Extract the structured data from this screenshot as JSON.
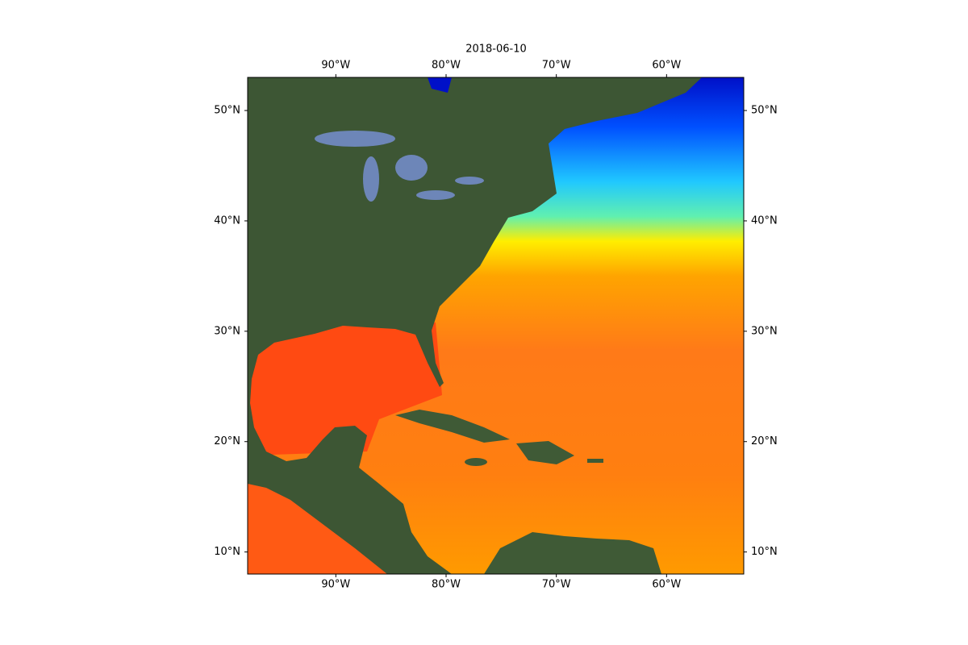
{
  "chart_data": {
    "type": "map",
    "title": "2018-06-10",
    "xlim": [
      -98,
      -53
    ],
    "ylim": [
      8,
      53
    ],
    "xticks": [
      {
        "value": -90,
        "label": "90°W"
      },
      {
        "value": -80,
        "label": "80°W"
      },
      {
        "value": -70,
        "label": "70°W"
      },
      {
        "value": -60,
        "label": "60°W"
      }
    ],
    "yticks": [
      {
        "value": 10,
        "label": "10°N"
      },
      {
        "value": 20,
        "label": "20°N"
      },
      {
        "value": 30,
        "label": "30°N"
      },
      {
        "value": 40,
        "label": "40°N"
      },
      {
        "value": 50,
        "label": "50°N"
      }
    ]
  }
}
